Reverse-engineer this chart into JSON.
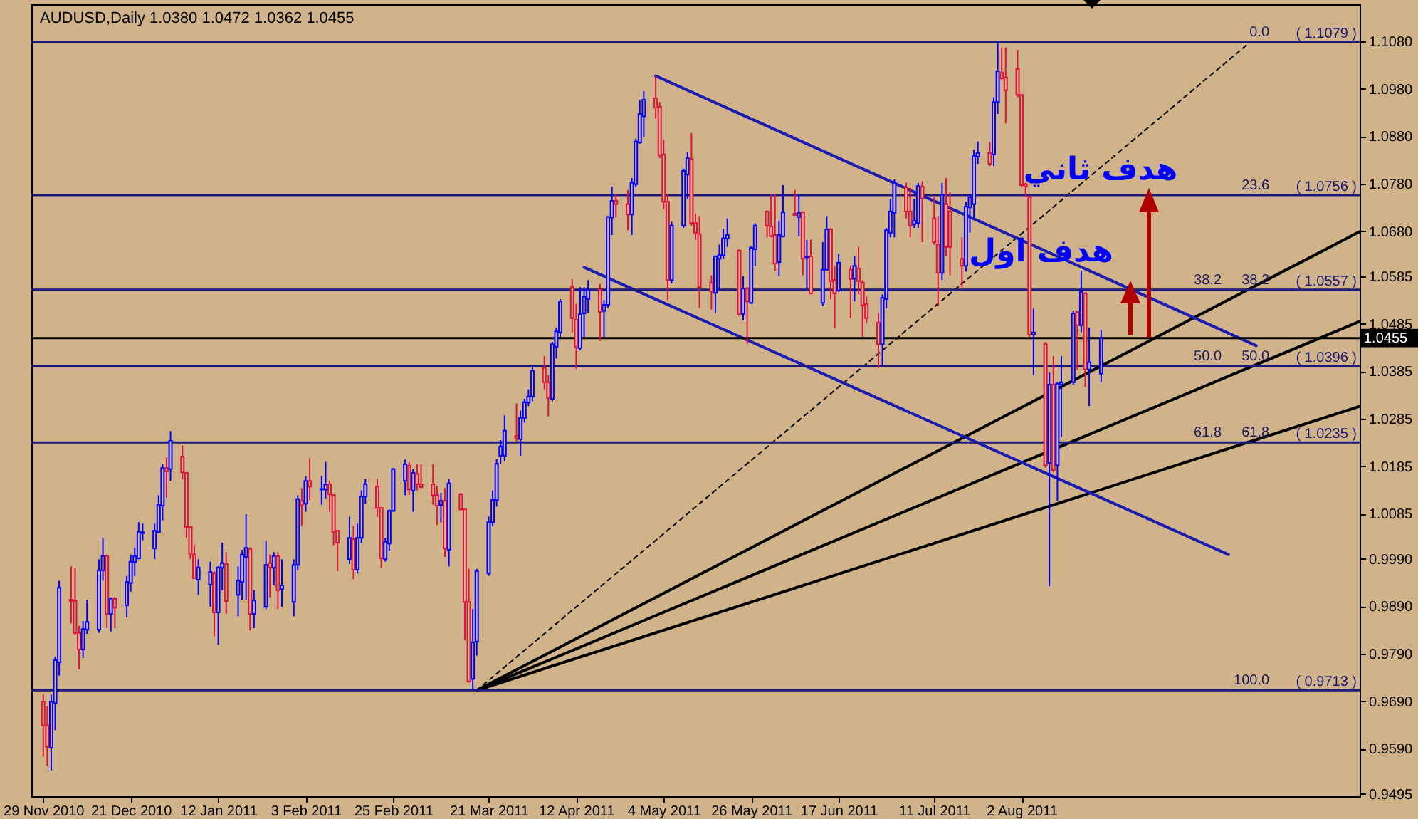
{
  "chart_data": {
    "type": "candlestick",
    "title": "AUDUSD,Daily  1.0380 1.0472 1.0362 1.0455",
    "x": [
      "2010-11-29",
      "2010-11-30",
      "2010-12-01",
      "2010-12-02",
      "2010-12-03",
      "2010-12-06",
      "2010-12-07",
      "2010-12-08",
      "2010-12-09",
      "2010-12-10",
      "2010-12-13",
      "2010-12-14",
      "2010-12-15",
      "2010-12-16",
      "2010-12-17",
      "2010-12-20",
      "2010-12-21",
      "2010-12-22",
      "2010-12-23",
      "2010-12-24",
      "2010-12-27",
      "2010-12-28",
      "2010-12-29",
      "2010-12-30",
      "2010-12-31",
      "2011-01-03",
      "2011-01-04",
      "2011-01-05",
      "2011-01-06",
      "2011-01-07",
      "2011-01-10",
      "2011-01-11",
      "2011-01-12",
      "2011-01-13",
      "2011-01-14",
      "2011-01-17",
      "2011-01-18",
      "2011-01-19",
      "2011-01-20",
      "2011-01-21",
      "2011-01-24",
      "2011-01-25",
      "2011-01-26",
      "2011-01-27",
      "2011-01-28",
      "2011-01-31",
      "2011-02-01",
      "2011-02-02",
      "2011-02-03",
      "2011-02-04",
      "2011-02-07",
      "2011-02-08",
      "2011-02-09",
      "2011-02-10",
      "2011-02-11",
      "2011-02-14",
      "2011-02-15",
      "2011-02-16",
      "2011-02-17",
      "2011-02-18",
      "2011-02-21",
      "2011-02-22",
      "2011-02-23",
      "2011-02-24",
      "2011-02-25",
      "2011-02-28",
      "2011-03-01",
      "2011-03-02",
      "2011-03-03",
      "2011-03-04",
      "2011-03-07",
      "2011-03-08",
      "2011-03-09",
      "2011-03-10",
      "2011-03-11",
      "2011-03-14",
      "2011-03-15",
      "2011-03-16",
      "2011-03-17",
      "2011-03-18",
      "2011-03-21",
      "2011-03-22",
      "2011-03-23",
      "2011-03-24",
      "2011-03-25",
      "2011-03-28",
      "2011-03-29",
      "2011-03-30",
      "2011-03-31",
      "2011-04-01",
      "2011-04-04",
      "2011-04-05",
      "2011-04-06",
      "2011-04-07",
      "2011-04-08",
      "2011-04-11",
      "2011-04-12",
      "2011-04-13",
      "2011-04-14",
      "2011-04-15",
      "2011-04-18",
      "2011-04-19",
      "2011-04-20",
      "2011-04-21",
      "2011-04-22",
      "2011-04-25",
      "2011-04-26",
      "2011-04-27",
      "2011-04-28",
      "2011-04-29",
      "2011-05-02",
      "2011-05-03",
      "2011-05-04",
      "2011-05-05",
      "2011-05-06",
      "2011-05-09",
      "2011-05-10",
      "2011-05-11",
      "2011-05-12",
      "2011-05-13",
      "2011-05-16",
      "2011-05-17",
      "2011-05-18",
      "2011-05-19",
      "2011-05-20",
      "2011-05-23",
      "2011-05-24",
      "2011-05-25",
      "2011-05-26",
      "2011-05-27",
      "2011-05-30",
      "2011-05-31",
      "2011-06-01",
      "2011-06-02",
      "2011-06-03",
      "2011-06-06",
      "2011-06-07",
      "2011-06-08",
      "2011-06-09",
      "2011-06-10",
      "2011-06-13",
      "2011-06-14",
      "2011-06-15",
      "2011-06-16",
      "2011-06-17",
      "2011-06-20",
      "2011-06-21",
      "2011-06-22",
      "2011-06-23",
      "2011-06-24",
      "2011-06-27",
      "2011-06-28",
      "2011-06-29",
      "2011-06-30",
      "2011-07-01",
      "2011-07-04",
      "2011-07-05",
      "2011-07-06",
      "2011-07-07",
      "2011-07-08",
      "2011-07-11",
      "2011-07-12",
      "2011-07-13",
      "2011-07-14",
      "2011-07-15",
      "2011-07-18",
      "2011-07-19",
      "2011-07-20",
      "2011-07-21",
      "2011-07-22",
      "2011-07-25",
      "2011-07-26",
      "2011-07-27",
      "2011-07-28",
      "2011-07-29",
      "2011-08-01",
      "2011-08-02",
      "2011-08-03",
      "2011-08-04",
      "2011-08-05",
      "2011-08-08",
      "2011-08-09",
      "2011-08-10",
      "2011-08-11",
      "2011-08-12",
      "2011-08-15",
      "2011-08-16",
      "2011-08-17",
      "2011-08-18",
      "2011-08-19",
      "2011-08-22"
    ],
    "ohlc": [
      [
        0.9689,
        0.9704,
        0.9574,
        0.9639
      ],
      [
        0.9639,
        0.9679,
        0.9554,
        0.9594
      ],
      [
        0.9592,
        0.9704,
        0.9544,
        0.9689
      ],
      [
        0.9686,
        0.9784,
        0.9629,
        0.9777
      ],
      [
        0.9772,
        0.9944,
        0.9744,
        0.9929
      ],
      [
        0.9904,
        0.9974,
        0.9854,
        0.9901
      ],
      [
        0.9902,
        0.9971,
        0.9829,
        0.9834
      ],
      [
        0.9834,
        0.9849,
        0.9757,
        0.9799
      ],
      [
        0.9799,
        0.9859,
        0.9781,
        0.9842
      ],
      [
        0.9841,
        0.9904,
        0.9832,
        0.9857
      ],
      [
        0.9841,
        0.9989,
        0.9834,
        0.9966
      ],
      [
        0.9966,
        1.0034,
        0.9944,
        0.9996
      ],
      [
        0.9996,
        0.9999,
        0.9844,
        0.9874
      ],
      [
        0.9874,
        0.9909,
        0.9837,
        0.9906
      ],
      [
        0.9906,
        0.9909,
        0.9844,
        0.9887
      ],
      [
        0.9892,
        0.9954,
        0.9867,
        0.9941
      ],
      [
        0.9939,
        0.9999,
        0.9921,
        0.9984
      ],
      [
        0.9983,
        1.0014,
        0.9954,
        0.9996
      ],
      [
        0.9991,
        1.0067,
        0.9989,
        1.0047
      ],
      [
        1.0044,
        1.0064,
        1.0029,
        1.0046
      ],
      [
        1.0012,
        1.0064,
        0.9989,
        1.0049
      ],
      [
        1.0046,
        1.0124,
        1.0044,
        1.0104
      ],
      [
        1.0102,
        1.0189,
        1.0071,
        1.0181
      ],
      [
        1.0181,
        1.0204,
        1.0119,
        1.0174
      ],
      [
        1.0179,
        1.0259,
        1.0154,
        1.0239
      ],
      [
        1.0205,
        1.0229,
        1.0157,
        1.0172
      ],
      [
        1.0171,
        1.0171,
        1.0034,
        1.0057
      ],
      [
        1.0057,
        1.0057,
        0.9989,
        1.0001
      ],
      [
        0.9999,
        1.0019,
        0.9949,
        0.9949
      ],
      [
        0.9946,
        0.9989,
        0.9914,
        0.9972
      ],
      [
        0.9936,
        0.9984,
        0.9889,
        0.9962
      ],
      [
        0.996,
        0.9964,
        0.9827,
        0.9877
      ],
      [
        0.9877,
        0.9974,
        0.9809,
        0.9972
      ],
      [
        0.9971,
        1.0024,
        0.9924,
        0.9981
      ],
      [
        0.9979,
        1.0004,
        0.9874,
        0.9901
      ],
      [
        0.9914,
        0.9974,
        0.9869,
        0.9944
      ],
      [
        0.9941,
        1.0009,
        0.9904,
        0.9999
      ],
      [
        0.9994,
        1.0084,
        0.9904,
        1.0013
      ],
      [
        1.0011,
        1.0014,
        0.9839,
        0.9874
      ],
      [
        0.9874,
        0.9924,
        0.9844,
        0.9902
      ],
      [
        0.9889,
        1.0027,
        0.9884,
        0.9977
      ],
      [
        0.9981,
        0.9999,
        0.9909,
        0.9972
      ],
      [
        0.9971,
        1.0004,
        0.9934,
        0.9996
      ],
      [
        0.9996,
        1.0004,
        0.9884,
        0.9924
      ],
      [
        0.9926,
        0.9989,
        0.9889,
        0.9934
      ],
      [
        0.9899,
        0.9989,
        0.9869,
        0.9977
      ],
      [
        0.9977,
        1.0124,
        0.9967,
        1.0116
      ],
      [
        1.0112,
        1.0139,
        1.0059,
        1.0103
      ],
      [
        1.0106,
        1.0164,
        1.0089,
        1.0154
      ],
      [
        1.0154,
        1.0202,
        1.0114,
        1.0142
      ],
      [
        1.0136,
        1.0164,
        1.0104,
        1.0137
      ],
      [
        1.0136,
        1.0194,
        1.0117,
        1.0147
      ],
      [
        1.0147,
        1.0154,
        1.0089,
        1.0126
      ],
      [
        1.0124,
        1.0124,
        1.0019,
        1.0046
      ],
      [
        1.0049,
        1.0049,
        0.9964,
        1.0024
      ],
      [
        0.9989,
        1.0079,
        0.9979,
        1.0034
      ],
      [
        1.0031,
        1.0059,
        0.9947,
        0.9967
      ],
      [
        0.9967,
        1.0064,
        0.9959,
        1.0034
      ],
      [
        1.0034,
        1.0134,
        1.0024,
        1.0121
      ],
      [
        1.0121,
        1.0159,
        1.0106,
        1.0147
      ],
      [
        1.0142,
        1.0159,
        1.0079,
        1.0097
      ],
      [
        1.0097,
        1.0099,
        0.9971,
        0.9991
      ],
      [
        0.9989,
        1.0034,
        0.9984,
        1.0026
      ],
      [
        1.0022,
        1.0094,
        1.0007,
        1.0091
      ],
      [
        1.0091,
        1.0181,
        1.0089,
        1.0179
      ],
      [
        1.0154,
        1.0199,
        1.0124,
        1.0189
      ],
      [
        1.0186,
        1.0194,
        1.0124,
        1.0136
      ],
      [
        1.0134,
        1.0179,
        1.0089,
        1.0171
      ],
      [
        1.0169,
        1.0189,
        1.0134,
        1.0147
      ],
      [
        1.0147,
        1.0189,
        1.0139,
        1.0141
      ],
      [
        1.0147,
        1.0189,
        1.0104,
        1.0124
      ],
      [
        1.0124,
        1.0144,
        1.0061,
        1.0102
      ],
      [
        1.0103,
        1.0129,
        1.0067,
        1.0112
      ],
      [
        1.0112,
        1.0139,
        0.9994,
        1.0012
      ],
      [
        1.0009,
        1.0159,
        0.9974,
        1.0149
      ],
      [
        1.0126,
        1.0129,
        1.0091,
        1.0094
      ],
      [
        1.0094,
        1.0094,
        0.9819,
        0.9899
      ],
      [
        0.9899,
        0.9969,
        0.9729,
        0.9732
      ],
      [
        0.9737,
        0.9884,
        0.9713,
        0.9814
      ],
      [
        0.9816,
        0.9969,
        0.9786,
        0.9964
      ],
      [
        0.9959,
        1.0079,
        0.9954,
        1.0067
      ],
      [
        1.0067,
        1.0134,
        1.0059,
        1.0114
      ],
      [
        1.0114,
        1.02,
        1.01,
        1.019
      ],
      [
        1.0207,
        1.024,
        1.019,
        1.0227
      ],
      [
        1.0207,
        1.0292,
        1.0195,
        1.026
      ],
      [
        1.0249,
        1.0317,
        1.0237,
        1.0244
      ],
      [
        1.0242,
        1.0302,
        1.0207,
        1.0287
      ],
      [
        1.0287,
        1.0327,
        1.0277,
        1.032
      ],
      [
        1.0319,
        1.0347,
        1.0312,
        1.0332
      ],
      [
        1.0332,
        1.0397,
        1.0322,
        1.0387
      ],
      [
        1.0392,
        1.0417,
        1.0347,
        1.0362
      ],
      [
        1.0362,
        1.0377,
        1.029,
        1.0329
      ],
      [
        1.0327,
        1.0447,
        1.0322,
        1.0442
      ],
      [
        1.0437,
        1.0477,
        1.0412,
        1.0469
      ],
      [
        1.0467,
        1.0537,
        1.0457,
        1.0532
      ],
      [
        1.0562,
        1.0579,
        1.0467,
        1.0497
      ],
      [
        1.0494,
        1.0527,
        1.039,
        1.0437
      ],
      [
        1.0434,
        1.0562,
        1.0429,
        1.0505
      ],
      [
        1.0507,
        1.0562,
        1.0457,
        1.0542
      ],
      [
        1.0537,
        1.0577,
        1.0507,
        1.0557
      ],
      [
        1.0557,
        1.0569,
        1.0449,
        1.051
      ],
      [
        1.0512,
        1.0535,
        1.0457,
        1.0525
      ],
      [
        1.0525,
        1.0712,
        1.0519,
        1.071
      ],
      [
        1.0709,
        1.0774,
        1.0672,
        1.0744
      ],
      [
        1.0744,
        1.0757,
        1.0709,
        1.0737
      ],
      [
        1.0737,
        1.0767,
        1.0682,
        1.0715
      ],
      [
        1.0715,
        1.0792,
        1.0672,
        1.0782
      ],
      [
        1.0779,
        1.0875,
        1.0772,
        1.0869
      ],
      [
        1.0867,
        1.0957,
        1.0864,
        1.0927
      ],
      [
        1.0922,
        1.0975,
        1.0879,
        1.0957
      ],
      [
        1.096,
        1.1007,
        1.0917,
        1.094
      ],
      [
        1.0942,
        1.0952,
        1.0834,
        1.084
      ],
      [
        1.0842,
        1.0872,
        1.0727,
        1.0742
      ],
      [
        1.0742,
        1.0757,
        1.0535,
        1.0577
      ],
      [
        1.0577,
        1.07,
        1.057,
        1.0692
      ],
      [
        1.0692,
        1.0811,
        1.0687,
        1.0807
      ],
      [
        1.0799,
        1.0847,
        1.0747,
        1.0834
      ],
      [
        1.0832,
        1.0887,
        1.0692,
        1.0697
      ],
      [
        1.0697,
        1.0717,
        1.0662,
        1.0677
      ],
      [
        1.0674,
        1.0712,
        1.0519,
        1.0562
      ],
      [
        1.0572,
        1.0587,
        1.0515,
        1.0553
      ],
      [
        1.055,
        1.0629,
        1.0507,
        1.0627
      ],
      [
        1.0622,
        1.0652,
        1.0557,
        1.063
      ],
      [
        1.0629,
        1.0685,
        1.0622,
        1.0665
      ],
      [
        1.0664,
        1.0707,
        1.0647,
        1.0672
      ],
      [
        1.0639,
        1.0642,
        1.0502,
        1.0505
      ],
      [
        1.0506,
        1.0585,
        1.0492,
        1.0559
      ],
      [
        1.056,
        1.0562,
        1.0442,
        1.0532
      ],
      [
        1.0529,
        1.0649,
        1.0527,
        1.0645
      ],
      [
        1.0642,
        1.0697,
        1.0607,
        1.0692
      ],
      [
        1.0722,
        1.0722,
        1.0667,
        1.0692
      ],
      [
        1.069,
        1.0757,
        1.0667,
        1.067
      ],
      [
        1.0672,
        1.0757,
        1.0597,
        1.0612
      ],
      [
        1.0615,
        1.0702,
        1.0585,
        1.0672
      ],
      [
        1.0669,
        1.0777,
        1.0667,
        1.072
      ],
      [
        1.0717,
        1.0767,
        1.0712,
        1.0714
      ],
      [
        1.071,
        1.0757,
        1.0669,
        1.0719
      ],
      [
        1.072,
        1.0722,
        1.0587,
        1.0622
      ],
      [
        1.0625,
        1.0662,
        1.0557,
        1.0627
      ],
      [
        1.0627,
        1.0662,
        1.0547,
        1.0549
      ],
      [
        1.0529,
        1.0657,
        1.0522,
        1.0599
      ],
      [
        1.0599,
        1.0712,
        1.0597,
        1.0684
      ],
      [
        1.0684,
        1.0687,
        1.0537,
        1.0575
      ],
      [
        1.0577,
        1.0607,
        1.0475,
        1.0549
      ],
      [
        1.0555,
        1.0632,
        1.0552,
        1.0614
      ],
      [
        1.0599,
        1.0607,
        1.0497,
        1.0579
      ],
      [
        1.058,
        1.0627,
        1.0532,
        1.0607
      ],
      [
        1.0602,
        1.0647,
        1.0547,
        1.0575
      ],
      [
        1.0572,
        1.0577,
        1.0457,
        1.0524
      ],
      [
        1.0527,
        1.0542,
        1.0487,
        1.0497
      ],
      [
        1.0487,
        1.0507,
        1.0392,
        1.0442
      ],
      [
        1.0442,
        1.0547,
        1.0397,
        1.054
      ],
      [
        1.0537,
        1.0687,
        1.0517,
        1.0682
      ],
      [
        1.0677,
        1.0747,
        1.0667,
        1.0722
      ],
      [
        1.0719,
        1.0789,
        1.0667,
        1.0782
      ],
      [
        1.0772,
        1.0782,
        1.0707,
        1.0722
      ],
      [
        1.0722,
        1.0772,
        1.0667,
        1.0692
      ],
      [
        1.0695,
        1.0747,
        1.0687,
        1.0702
      ],
      [
        1.0697,
        1.0782,
        1.0687,
        1.0775
      ],
      [
        1.0774,
        1.0785,
        1.0657,
        1.0749
      ],
      [
        1.0707,
        1.0752,
        1.0652,
        1.0657
      ],
      [
        1.0652,
        1.0712,
        1.0522,
        1.0592
      ],
      [
        1.0592,
        1.0782,
        1.0577,
        1.0757
      ],
      [
        1.0737,
        1.0792,
        1.0627,
        1.0647
      ],
      [
        1.0722,
        1.0762,
        1.0587,
        1.0647
      ],
      [
        1.0622,
        1.0667,
        1.0562,
        1.0607
      ],
      [
        1.0607,
        1.0742,
        1.0595,
        1.0732
      ],
      [
        1.073,
        1.0757,
        1.0677,
        1.0752
      ],
      [
        1.0737,
        1.0852,
        1.0707,
        1.0839
      ],
      [
        1.0837,
        1.0869,
        1.0822,
        1.0845
      ],
      [
        1.0845,
        1.0867,
        1.0817,
        1.0822
      ],
      [
        1.0842,
        1.0962,
        1.0817,
        1.0952
      ],
      [
        1.0952,
        1.1079,
        1.0927,
        1.1017
      ],
      [
        1.1014,
        1.1067,
        1.0997,
        1.1002
      ],
      [
        1.1004,
        1.1067,
        1.0907,
        1.0977
      ],
      [
        1.1022,
        1.1062,
        1.0962,
        1.0967
      ],
      [
        1.0967,
        1.0967,
        1.0772,
        1.0777
      ],
      [
        1.0779,
        1.0782,
        1.0752,
        1.0774
      ],
      [
        1.0752,
        1.0755,
        1.0457,
        1.0462
      ],
      [
        1.0462,
        1.0517,
        1.0377,
        1.0467
      ],
      [
        1.0442,
        1.0447,
        1.0182,
        1.0187
      ],
      [
        1.0192,
        1.0382,
        0.9932,
        1.0357
      ],
      [
        1.0357,
        1.0417,
        1.0172,
        1.0177
      ],
      [
        1.0187,
        1.0362,
        1.0112,
        1.0359
      ],
      [
        1.0357,
        1.0417,
        1.0247,
        1.0362
      ],
      [
        1.0362,
        1.0512,
        1.0357,
        1.0507
      ],
      [
        1.051,
        1.0512,
        1.0387,
        1.0482
      ],
      [
        1.0482,
        1.0597,
        1.0467,
        1.0552
      ],
      [
        1.0549,
        1.0552,
        1.0352,
        1.0389
      ],
      [
        1.0389,
        1.0477,
        1.0312,
        1.0404
      ],
      [
        1.038,
        1.0472,
        1.0362,
        1.0455
      ]
    ],
    "xlim": [
      "2010-11-26",
      "2011-10-26"
    ],
    "xticks": [
      {
        "value": "2010-11-29",
        "label": "29 Nov 2010"
      },
      {
        "value": "2010-12-21",
        "label": "21 Dec 2010"
      },
      {
        "value": "2011-01-12",
        "label": "12 Jan 2011"
      },
      {
        "value": "2011-02-03",
        "label": "3 Feb 2011"
      },
      {
        "value": "2011-02-25",
        "label": "25 Feb 2011"
      },
      {
        "value": "2011-03-21",
        "label": "21 Mar 2011"
      },
      {
        "value": "2011-04-12",
        "label": "12 Apr 2011"
      },
      {
        "value": "2011-05-04",
        "label": "4 May 2011"
      },
      {
        "value": "2011-05-26",
        "label": "26 May 2011"
      },
      {
        "value": "2011-06-17",
        "label": "17 Jun 2011"
      },
      {
        "value": "2011-07-11",
        "label": "11 Jul 2011"
      },
      {
        "value": "2011-08-02",
        "label": "2 Aug 2011"
      }
    ],
    "ylim": [
      0.949,
      1.1158
    ],
    "yticks": [
      {
        "value": 1.108,
        "label": "1.1080"
      },
      {
        "value": 1.098,
        "label": "1.0980"
      },
      {
        "value": 1.088,
        "label": "1.0880"
      },
      {
        "value": 1.078,
        "label": "1.0780"
      },
      {
        "value": 1.068,
        "label": "1.0680"
      },
      1.0585,
      1.0485,
      1.0385,
      1.0285,
      1.0185,
      1.0085,
      {
        "value": 0.999,
        "label": "0.9990"
      },
      {
        "value": 0.989,
        "label": "0.9890"
      },
      {
        "value": 0.979,
        "label": "0.9790"
      },
      {
        "value": 0.969,
        "label": "0.9690"
      },
      {
        "value": 0.959,
        "label": "0.9590"
      },
      0.9495
    ],
    "ref_lines": [
      {
        "axis": "y",
        "value": 1.1079,
        "label": "( 1.1079 )",
        "color": "#1c1c78"
      },
      {
        "axis": "y",
        "value": 1.0756,
        "label": "( 1.0756 )",
        "color": "#1c1c78"
      },
      {
        "axis": "y",
        "value": 1.0557,
        "label": "( 1.0557 )",
        "color": "#1c1c78"
      },
      {
        "axis": "y",
        "value": 1.0396,
        "label": "( 1.0396 )",
        "color": "#1c1c78"
      },
      {
        "axis": "y",
        "value": 1.0235,
        "label": "( 1.0235 )",
        "color": "#1c1c78"
      },
      {
        "axis": "y",
        "value": 0.9713,
        "label": "( 0.9713 )",
        "color": "#1c1c78"
      },
      {
        "axis": "y",
        "value": 1.0455,
        "label": "1.0455",
        "color": "#000000"
      }
    ],
    "annotations": [
      {
        "text": "0.0",
        "x": "2011-10-04",
        "y": 1.1079
      },
      {
        "text": "23.6",
        "x": "2011-10-04",
        "y": 1.0756
      },
      {
        "text": "38.2",
        "x": "2011-10-04",
        "y": 1.0557
      },
      {
        "text": "50.0",
        "x": "2011-10-04",
        "y": 1.0396
      },
      {
        "text": "61.8",
        "x": "2011-10-04",
        "y": 1.0235
      },
      {
        "text": "100.0",
        "x": "2011-10-04",
        "y": 0.9713
      },
      {
        "text": "38.2",
        "x": "2011-09-22",
        "y": 1.0557
      },
      {
        "text": "50.0",
        "x": "2011-09-22",
        "y": 1.0396
      },
      {
        "text": "61.8",
        "x": "2011-09-22",
        "y": 1.0235
      },
      {
        "text": "هدف ثاني",
        "x": "2011-09-02",
        "y": 1.0756
      },
      {
        "text": "هدف اول",
        "x": "2011-08-29",
        "y": 1.0557
      }
    ],
    "series": [
      {
        "type": "line",
        "x": [
          "2011-03-18",
          "2011-10-26"
        ],
        "values": [
          0.9713,
          1.0679
        ],
        "color": "#000000",
        "line_style": "solid"
      },
      {
        "type": "line",
        "x": [
          "2011-03-18",
          "2011-10-26"
        ],
        "values": [
          0.9713,
          1.049
        ],
        "color": "#000000",
        "line_style": "solid"
      },
      {
        "type": "line",
        "x": [
          "2011-03-18",
          "2011-10-26"
        ],
        "values": [
          0.9713,
          1.0311
        ],
        "color": "#000000",
        "line_style": "solid"
      },
      {
        "type": "line",
        "x": [
          "2011-03-18",
          "2011-09-28"
        ],
        "values": [
          0.9713,
          1.1075
        ],
        "color": "#000000",
        "line_style": "dashed"
      },
      {
        "type": "line",
        "x": [
          "2011-05-02",
          "2011-09-30"
        ],
        "values": [
          1.1007,
          1.0439
        ],
        "color": "#1c1cb0",
        "line_style": "solid"
      },
      {
        "type": "line",
        "x": [
          "2011-04-14",
          "2011-09-23"
        ],
        "values": [
          1.0604,
          0.9999
        ],
        "color": "#1c1cb0",
        "line_style": "solid"
      }
    ]
  }
}
